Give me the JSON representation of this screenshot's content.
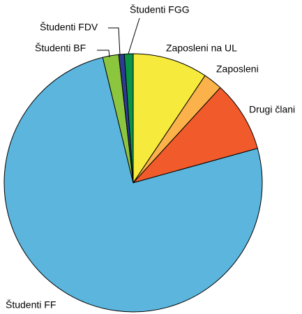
{
  "chart_data": {
    "type": "pie",
    "categories": [
      "Zaposleni na UL",
      "Zaposleni",
      "Drugi člani",
      "Študenti FF",
      "Študenti BF",
      "Študenti FDV",
      "Študenti FGG"
    ],
    "values": [
      9.4,
      2.4,
      8.9,
      75.5,
      2.0,
      0.7,
      1.1
    ],
    "colors": [
      "#f6eb3c",
      "#fbb24a",
      "#f15a2b",
      "#5bb5dd",
      "#8cc63f",
      "#2e3a92",
      "#0b9448"
    ]
  }
}
